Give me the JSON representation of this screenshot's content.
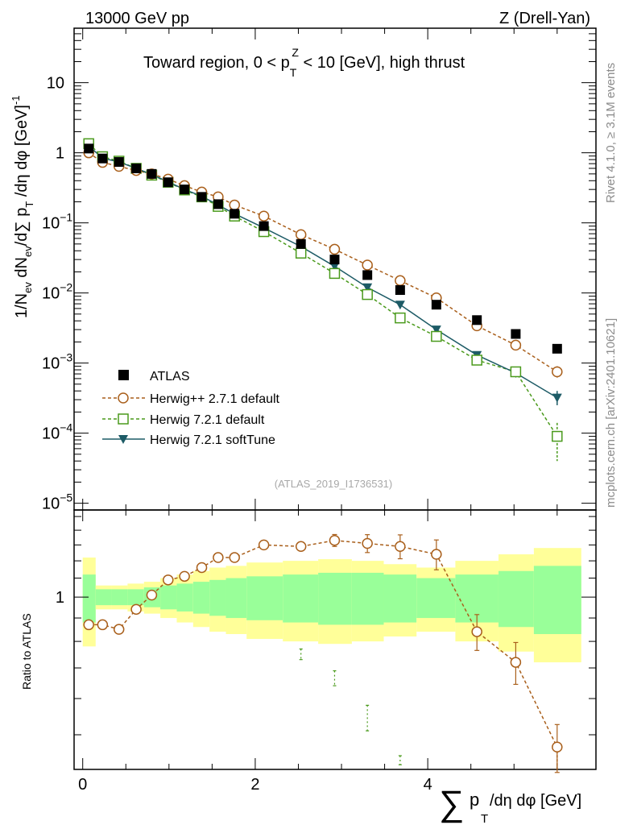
{
  "header": {
    "energy": "13000 GeV pp",
    "process": "Z (Drell-Yan)",
    "title": "Toward region, 0 < p",
    "title_sup": "Z",
    "title_sub": "T",
    "title_rest": " < 10 [GeV], high thrust",
    "rivet": "Rivet 4.1.0, ≥ 3.1M events",
    "mcplots": "mcplots.cern.ch [arXiv:2401.10621]",
    "analysis": "(ATLAS_2019_I1736531)"
  },
  "axes": {
    "ylabel_main": "1/N",
    "ylabel_main_sub": "ev",
    "ylabel_main_mid": " dN",
    "ylabel_main_sub2": "ev",
    "ylabel_main_end": "/d∑ p",
    "ylabel_main_sub3": "T",
    "ylabel_main_tail": " /dη dφ  [GeV]",
    "ylabel_main_sup": "-1",
    "ylabel_ratio": "Ratio to ATLAS",
    "xlabel_sum": "∑",
    "xlabel_p": "p",
    "xlabel_sub": "T",
    "xlabel_rest": " /dη dφ [GeV]",
    "xticks": [
      "0",
      "2",
      "4"
    ],
    "ratio_tick": "1",
    "yticks_main": [
      {
        "base": "10",
        "exp": "",
        "value": 10
      },
      {
        "base": "1",
        "exp": "",
        "value": 1
      },
      {
        "base": "10",
        "exp": "−1",
        "value": 0.1
      },
      {
        "base": "10",
        "exp": "−2",
        "value": 0.01
      },
      {
        "base": "10",
        "exp": "−3",
        "value": 0.001
      },
      {
        "base": "10",
        "exp": "−4",
        "value": 0.0001
      },
      {
        "base": "10",
        "exp": "−5",
        "value": 1e-05
      }
    ]
  },
  "legend": {
    "atlas": "ATLAS",
    "hpp": "Herwig++ 2.7.1 default",
    "h721": "Herwig 7.2.1 default",
    "soft": "Herwig 7.2.1 softTune"
  },
  "colors": {
    "atlas": "#000000",
    "hpp": "#a95f1b",
    "h721": "#4a9a1c",
    "soft": "#1d5b66",
    "band_inner": "#99ff99",
    "band_outer": "#ffff99"
  },
  "chart_data": {
    "type": "line",
    "x_range": [
      -0.1,
      5.95
    ],
    "y_range_main": [
      8e-06,
      60
    ],
    "y_scale_main": "log",
    "y_range_ratio": [
      0.42,
      1.55
    ],
    "x": [
      0.07,
      0.23,
      0.42,
      0.62,
      0.8,
      0.99,
      1.18,
      1.38,
      1.57,
      1.76,
      2.1,
      2.53,
      2.92,
      3.3,
      3.68,
      4.1,
      4.57,
      5.02,
      5.5
    ],
    "bins": [
      0,
      0.15,
      0.33,
      0.52,
      0.71,
      0.9,
      1.09,
      1.28,
      1.47,
      1.66,
      1.9,
      2.32,
      2.73,
      3.12,
      3.49,
      3.87,
      4.32,
      4.82,
      5.23,
      5.78
    ],
    "series": [
      {
        "name": "ATLAS",
        "values": [
          1.15,
          0.83,
          0.74,
          0.6,
          0.5,
          0.38,
          0.3,
          0.235,
          0.185,
          0.135,
          0.09,
          0.05,
          0.03,
          0.018,
          0.011,
          0.0068,
          0.0041,
          0.0026,
          0.0016
        ]
      },
      {
        "name": "Herwig++ 2.7.1 default",
        "values": [
          1.0,
          0.73,
          0.64,
          0.56,
          0.5,
          0.42,
          0.34,
          0.275,
          0.235,
          0.18,
          0.125,
          0.068,
          0.042,
          0.025,
          0.015,
          0.0085,
          0.0034,
          0.0018,
          0.00075
        ]
      },
      {
        "name": "Herwig 7.2.1 default",
        "values": [
          1.35,
          0.88,
          0.76,
          0.6,
          0.48,
          0.38,
          0.295,
          0.235,
          0.172,
          0.125,
          0.075,
          0.037,
          0.019,
          0.0095,
          0.0044,
          0.0024,
          0.0011,
          0.00075,
          9e-05
        ]
      },
      {
        "name": "Herwig 7.2.1 softTune",
        "values": [
          1.25,
          0.84,
          0.74,
          0.6,
          0.49,
          0.385,
          0.3,
          0.24,
          0.18,
          0.135,
          0.085,
          0.046,
          0.024,
          0.012,
          0.0068,
          0.003,
          0.0013,
          0.00072,
          0.00032
        ]
      }
    ],
    "ratio_hpp": [
      0.87,
      0.87,
      0.85,
      0.94,
      1.01,
      1.09,
      1.11,
      1.16,
      1.22,
      1.22,
      1.3,
      1.29,
      1.33,
      1.31,
      1.29,
      1.24,
      0.84,
      0.72,
      0.47
    ],
    "ratio_h721_errs": [
      [
        2.53,
        0.77,
        0.73
      ],
      [
        2.92,
        0.69,
        0.64
      ],
      [
        3.3,
        0.58,
        0.51
      ],
      [
        3.68,
        0.45,
        0.43
      ]
    ],
    "band_inner": [
      0.12,
      0.04,
      0.04,
      0.04,
      0.05,
      0.06,
      0.07,
      0.08,
      0.09,
      0.1,
      0.11,
      0.12,
      0.13,
      0.13,
      0.12,
      0.1,
      0.12,
      0.14,
      0.17
    ],
    "band_outer": [
      0.22,
      0.06,
      0.06,
      0.07,
      0.08,
      0.1,
      0.12,
      0.14,
      0.16,
      0.17,
      0.19,
      0.2,
      0.21,
      0.2,
      0.18,
      0.16,
      0.2,
      0.24,
      0.28
    ]
  }
}
